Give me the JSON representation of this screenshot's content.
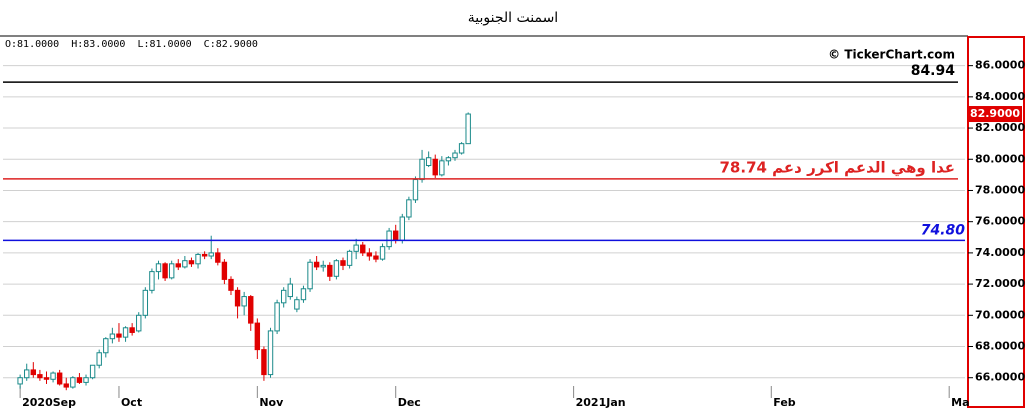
{
  "chart_data": {
    "type": "candlestick",
    "title": "اسمنت الجنوبية",
    "info": "O:81.0000  H:83.0000  L:81.0000  C:82.9000",
    "watermark": "© TickerChart.com",
    "up_color": "#1a8a8a",
    "down_color": "#e00000",
    "x": [
      0,
      1,
      2,
      3,
      4,
      5,
      6,
      7,
      8,
      9,
      10,
      11,
      12,
      13,
      14,
      15,
      16,
      17,
      18,
      19,
      20,
      21,
      22,
      23,
      24,
      25,
      26,
      27,
      28,
      29,
      30,
      31,
      32,
      33,
      34,
      35,
      36,
      37,
      38,
      39,
      40,
      41,
      42,
      43,
      44,
      45,
      46,
      47,
      48,
      49,
      50,
      51,
      52,
      53,
      54,
      55,
      56,
      57,
      58,
      59,
      60,
      61,
      62,
      63,
      64,
      65,
      66,
      67,
      68
    ],
    "open": [
      65.6,
      66.0,
      66.5,
      66.2,
      66.0,
      65.9,
      66.3,
      65.6,
      65.4,
      66.0,
      65.7,
      66.0,
      66.8,
      67.6,
      68.5,
      68.8,
      68.6,
      69.2,
      69.0,
      70.0,
      71.6,
      72.8,
      73.3,
      72.4,
      73.3,
      73.1,
      73.5,
      73.3,
      73.9,
      73.8,
      74.0,
      73.4,
      72.3,
      71.6,
      70.6,
      71.2,
      69.5,
      67.8,
      66.2,
      69.0,
      70.8,
      71.2,
      70.4,
      71.0,
      71.7,
      73.4,
      73.1,
      73.2,
      72.5,
      73.5,
      73.2,
      74.1,
      74.5,
      74.0,
      73.8,
      73.6,
      74.4,
      75.4,
      74.8,
      76.3,
      77.4,
      78.7,
      79.6,
      80.0,
      79.0,
      79.9,
      80.1,
      80.4,
      81.0
    ],
    "high": [
      66.2,
      66.9,
      67.0,
      66.5,
      66.4,
      66.4,
      66.5,
      66.0,
      66.1,
      66.3,
      66.2,
      66.8,
      67.8,
      68.6,
      69.2,
      69.5,
      69.3,
      69.5,
      70.2,
      71.8,
      73.0,
      73.5,
      73.4,
      73.5,
      73.6,
      73.8,
      73.7,
      74.0,
      74.1,
      75.1,
      74.3,
      73.6,
      72.5,
      71.8,
      71.5,
      71.3,
      69.8,
      68.0,
      69.2,
      71.0,
      71.8,
      72.4,
      71.2,
      71.9,
      73.6,
      73.8,
      73.5,
      73.4,
      73.6,
      73.7,
      74.2,
      74.9,
      74.7,
      74.3,
      74.1,
      74.6,
      75.6,
      75.8,
      76.5,
      77.6,
      78.9,
      80.6,
      80.5,
      80.3,
      80.2,
      80.2,
      80.6,
      81.1,
      83.0
    ],
    "low": [
      65.3,
      65.8,
      66.0,
      65.8,
      65.6,
      65.7,
      65.5,
      65.2,
      65.3,
      65.6,
      65.5,
      65.9,
      66.6,
      67.3,
      68.2,
      68.3,
      68.3,
      68.7,
      68.9,
      69.8,
      71.4,
      72.3,
      72.2,
      72.3,
      72.9,
      73.0,
      73.1,
      73.0,
      73.6,
      73.6,
      73.2,
      72.0,
      71.3,
      69.8,
      70.0,
      69.0,
      67.2,
      65.8,
      66.0,
      68.8,
      70.5,
      71.0,
      70.2,
      70.8,
      71.5,
      72.9,
      72.8,
      72.2,
      72.3,
      72.9,
      73.0,
      73.6,
      73.8,
      73.5,
      73.4,
      73.5,
      74.2,
      74.6,
      74.6,
      76.1,
      77.2,
      78.5,
      79.5,
      78.8,
      78.9,
      79.6,
      79.9,
      80.3,
      81.0
    ],
    "close": [
      66.0,
      66.5,
      66.2,
      66.0,
      65.9,
      66.3,
      65.6,
      65.4,
      66.0,
      65.7,
      66.0,
      66.8,
      67.6,
      68.5,
      68.8,
      68.6,
      69.2,
      68.9,
      70.0,
      71.6,
      72.8,
      73.3,
      72.4,
      73.3,
      73.1,
      73.5,
      73.3,
      73.9,
      73.8,
      74.0,
      73.4,
      72.3,
      71.6,
      70.6,
      71.2,
      69.5,
      67.8,
      66.2,
      69.0,
      70.8,
      71.6,
      72.0,
      71.0,
      71.7,
      73.4,
      73.1,
      73.2,
      72.5,
      73.5,
      73.2,
      74.1,
      74.5,
      74.0,
      73.8,
      73.6,
      74.4,
      75.4,
      74.8,
      76.3,
      77.4,
      78.7,
      80.0,
      80.1,
      79.0,
      79.9,
      80.1,
      80.4,
      81.0,
      82.9
    ],
    "xlim": [
      -2.6,
      143.4
    ],
    "xticks": [
      {
        "value": 0,
        "label": "2020Sep"
      },
      {
        "value": 15,
        "label": "Oct"
      },
      {
        "value": 36,
        "label": "Nov"
      },
      {
        "value": 57,
        "label": "Dec"
      },
      {
        "value": 84,
        "label": "2021Jan"
      },
      {
        "value": 114,
        "label": "Feb"
      },
      {
        "value": 141,
        "label": "Ma"
      }
    ],
    "ylim": [
      64.7,
      87.9
    ],
    "yticks": [
      {
        "value": 66,
        "label": "66.0000"
      },
      {
        "value": 68,
        "label": "68.0000"
      },
      {
        "value": 70,
        "label": "70.0000"
      },
      {
        "value": 72,
        "label": "72.0000"
      },
      {
        "value": 74,
        "label": "74.0000"
      },
      {
        "value": 76,
        "label": "76.0000"
      },
      {
        "value": 78,
        "label": "78.0000"
      },
      {
        "value": 80,
        "label": "80.0000"
      },
      {
        "value": 82,
        "label": "82.0000"
      },
      {
        "value": 84,
        "label": "84.0000"
      },
      {
        "value": 86,
        "label": "86.0000"
      }
    ],
    "last_price": {
      "value": 82.9,
      "label": "82.9000"
    },
    "lines": [
      {
        "value": 84.94,
        "label": "84.94",
        "color": "#000000"
      },
      {
        "value": 78.74,
        "label": "78.74 عدا وهي الدعم اكرر دعم",
        "color": "#dd2222"
      },
      {
        "value": 74.8,
        "label": "74.80",
        "color": "#1010dd"
      }
    ],
    "grid": true
  }
}
